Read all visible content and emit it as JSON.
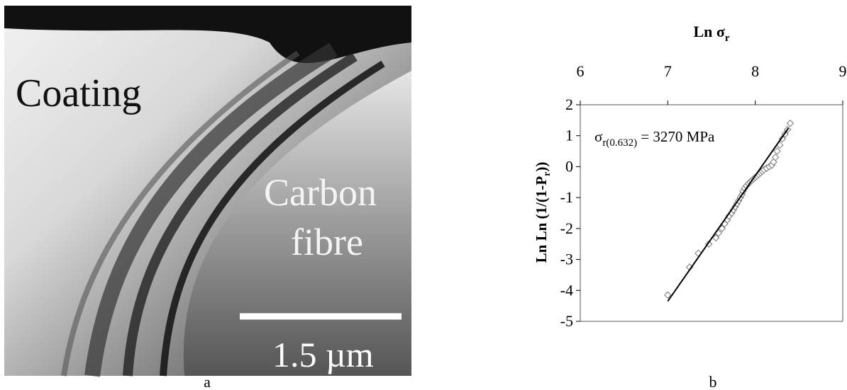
{
  "panel_a": {
    "labels": [
      "Coating",
      "Carbon",
      "fibre"
    ],
    "scale_bar": "1.5 µm",
    "caption": "a"
  },
  "chart_data": {
    "type": "scatter",
    "x_label_parts": [
      "Ln σ",
      "r"
    ],
    "y_label_parts": [
      "Ln Ln (1/(1-P",
      "r",
      "))"
    ],
    "annotation_parts": [
      "σ",
      "r(0.632)",
      " = 3270 MPa"
    ],
    "xlim": [
      6,
      9
    ],
    "xticks": [
      6,
      7,
      8,
      9
    ],
    "x_axis_position": "top",
    "ylim": [
      -5,
      2
    ],
    "yticks": [
      -5,
      -4,
      -3,
      -2,
      -1,
      0,
      1,
      2
    ],
    "series": [
      {
        "kind": "scatter",
        "marker": "diamond",
        "color": "#777777",
        "x": [
          7.0,
          7.25,
          7.35,
          7.47,
          7.55,
          7.58,
          7.62,
          7.65,
          7.68,
          7.7,
          7.73,
          7.75,
          7.77,
          7.79,
          7.81,
          7.83,
          7.85,
          7.86,
          7.88,
          7.9,
          7.92,
          7.94,
          7.96,
          7.98,
          8.0,
          8.02,
          8.04,
          8.06,
          8.08,
          8.1,
          8.13,
          8.16,
          8.19,
          8.21,
          8.23,
          8.25,
          8.28,
          8.31,
          8.34,
          8.37,
          8.4
        ],
        "values": [
          -4.15,
          -3.25,
          -2.8,
          -2.5,
          -2.3,
          -2.15,
          -2.0,
          -1.85,
          -1.72,
          -1.6,
          -1.5,
          -1.4,
          -1.3,
          -1.2,
          -1.1,
          -1.0,
          -0.9,
          -0.8,
          -0.7,
          -0.62,
          -0.55,
          -0.5,
          -0.45,
          -0.4,
          -0.35,
          -0.3,
          -0.25,
          -0.2,
          -0.15,
          -0.1,
          -0.05,
          0.0,
          0.05,
          0.15,
          0.3,
          0.5,
          0.7,
          0.9,
          1.05,
          1.2,
          1.4
        ]
      },
      {
        "kind": "line",
        "color": "#000000",
        "x": [
          7.0,
          8.38
        ],
        "values": [
          -4.35,
          1.25
        ]
      }
    ],
    "caption": "b"
  }
}
